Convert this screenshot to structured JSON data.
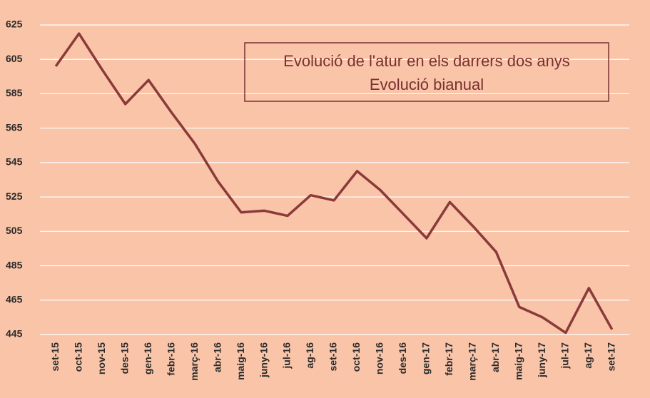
{
  "chart_data": {
    "type": "line",
    "title": "Evolució de l'atur en els darrers dos anys",
    "subtitle": "Evolució bianual",
    "categories": [
      "set-15",
      "oct-15",
      "nov-15",
      "des-15",
      "gen-16",
      "febr-16",
      "març-16",
      "abr-16",
      "maig-16",
      "juny-16",
      "jul-16",
      "ag-16",
      "set-16",
      "oct-16",
      "nov-16",
      "des-16",
      "gen-17",
      "febr-17",
      "març-17",
      "abr-17",
      "maig-17",
      "juny-17",
      "jul-17",
      "ag-17",
      "set-17"
    ],
    "values": [
      601,
      620,
      599,
      579,
      593,
      574,
      556,
      534,
      516,
      517,
      514,
      526,
      523,
      540,
      529,
      515,
      501,
      522,
      508,
      493,
      461,
      455,
      446,
      472,
      448
    ],
    "color": "#8b3a3a",
    "ylim": [
      445,
      625
    ],
    "yticks": [
      445,
      465,
      485,
      505,
      525,
      545,
      565,
      585,
      605,
      625
    ],
    "grid": true
  }
}
